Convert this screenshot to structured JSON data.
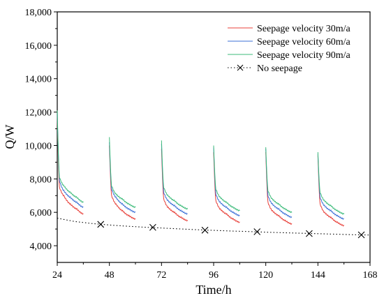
{
  "chart_data": {
    "type": "line",
    "xlabel": "Time/h",
    "ylabel": "Q/W",
    "xlim": [
      24,
      168
    ],
    "ylim": [
      3000,
      18000
    ],
    "x_ticks": [
      24,
      48,
      72,
      96,
      120,
      144,
      168
    ],
    "x_tick_labels": [
      "24",
      "48",
      "72",
      "96",
      "120",
      "144",
      "168"
    ],
    "y_ticks": [
      4000,
      6000,
      8000,
      10000,
      12000,
      14000,
      16000,
      18000
    ],
    "y_tick_labels": [
      "4,000",
      "6,000",
      "8,000",
      "10,000",
      "12,000",
      "14,000",
      "16,000",
      "18,000"
    ],
    "legend_position": "top-right",
    "cycle_starts": [
      24,
      48,
      72,
      96,
      120,
      144
    ],
    "cycle_duration": 12,
    "series": [
      {
        "name": "Seepage velocity 30m/a",
        "color": "#e8403a",
        "style": "solid",
        "peaks": [
          11800,
          10000,
          9800,
          9600,
          9600,
          9400
        ],
        "values_at_cycle_hours": {
          "hours": [
            0,
            1,
            3,
            6,
            9,
            12
          ],
          "by_cycle": [
            [
              11800,
              7500,
              7000,
              6500,
              6200,
              5900
            ],
            [
              10000,
              7000,
              6500,
              6100,
              5800,
              5600
            ],
            [
              9800,
              6800,
              6300,
              6000,
              5700,
              5500
            ],
            [
              9600,
              6700,
              6200,
              5900,
              5600,
              5400
            ],
            [
              9600,
              6600,
              6100,
              5800,
              5500,
              5300
            ],
            [
              9400,
              6500,
              6000,
              5700,
              5400,
              5200
            ]
          ]
        }
      },
      {
        "name": "Seepage velocity 60m/a",
        "color": "#3b6fd6",
        "style": "solid",
        "peaks": [
          12000,
          10200,
          10100,
          9900,
          9800,
          9500
        ],
        "values_at_cycle_hours": {
          "hours": [
            0,
            1,
            3,
            6,
            9,
            12
          ],
          "by_cycle": [
            [
              12000,
              7900,
              7300,
              6900,
              6600,
              6300
            ],
            [
              10200,
              7400,
              6900,
              6500,
              6200,
              6000
            ],
            [
              10100,
              7200,
              6700,
              6400,
              6100,
              5900
            ],
            [
              9900,
              7100,
              6600,
              6300,
              6000,
              5800
            ],
            [
              9800,
              7000,
              6500,
              6200,
              5900,
              5700
            ],
            [
              9500,
              6900,
              6400,
              6100,
              5800,
              5600
            ]
          ]
        }
      },
      {
        "name": "Seepage velocity 90m/a",
        "color": "#3dbb7a",
        "style": "solid",
        "peaks": [
          12100,
          10500,
          10300,
          10000,
          9900,
          9600
        ],
        "values_at_cycle_hours": {
          "hours": [
            0,
            1,
            3,
            6,
            9,
            12
          ],
          "by_cycle": [
            [
              12100,
              8100,
              7600,
              7200,
              6900,
              6600
            ],
            [
              10500,
              7600,
              7100,
              6800,
              6500,
              6300
            ],
            [
              10300,
              7500,
              7000,
              6700,
              6400,
              6200
            ],
            [
              10000,
              7400,
              6900,
              6600,
              6300,
              6100
            ],
            [
              9900,
              7300,
              6800,
              6500,
              6200,
              6000
            ],
            [
              9600,
              7200,
              6700,
              6400,
              6100,
              5900
            ]
          ]
        }
      },
      {
        "name": "No seepage",
        "color": "#000000",
        "style": "dotted",
        "marker": "x",
        "x": [
          24,
          32,
          40,
          48,
          56,
          64,
          72,
          80,
          88,
          96,
          104,
          112,
          120,
          128,
          136,
          144,
          152,
          160,
          168
        ],
        "values": [
          5650,
          5450,
          5330,
          5240,
          5170,
          5110,
          5060,
          5010,
          4960,
          4920,
          4880,
          4850,
          4810,
          4780,
          4750,
          4720,
          4690,
          4660,
          4640
        ],
        "marker_x": [
          44,
          68,
          92,
          116,
          140,
          164
        ],
        "marker_values": [
          5280,
          5100,
          4930,
          4840,
          4730,
          4650
        ]
      }
    ]
  }
}
